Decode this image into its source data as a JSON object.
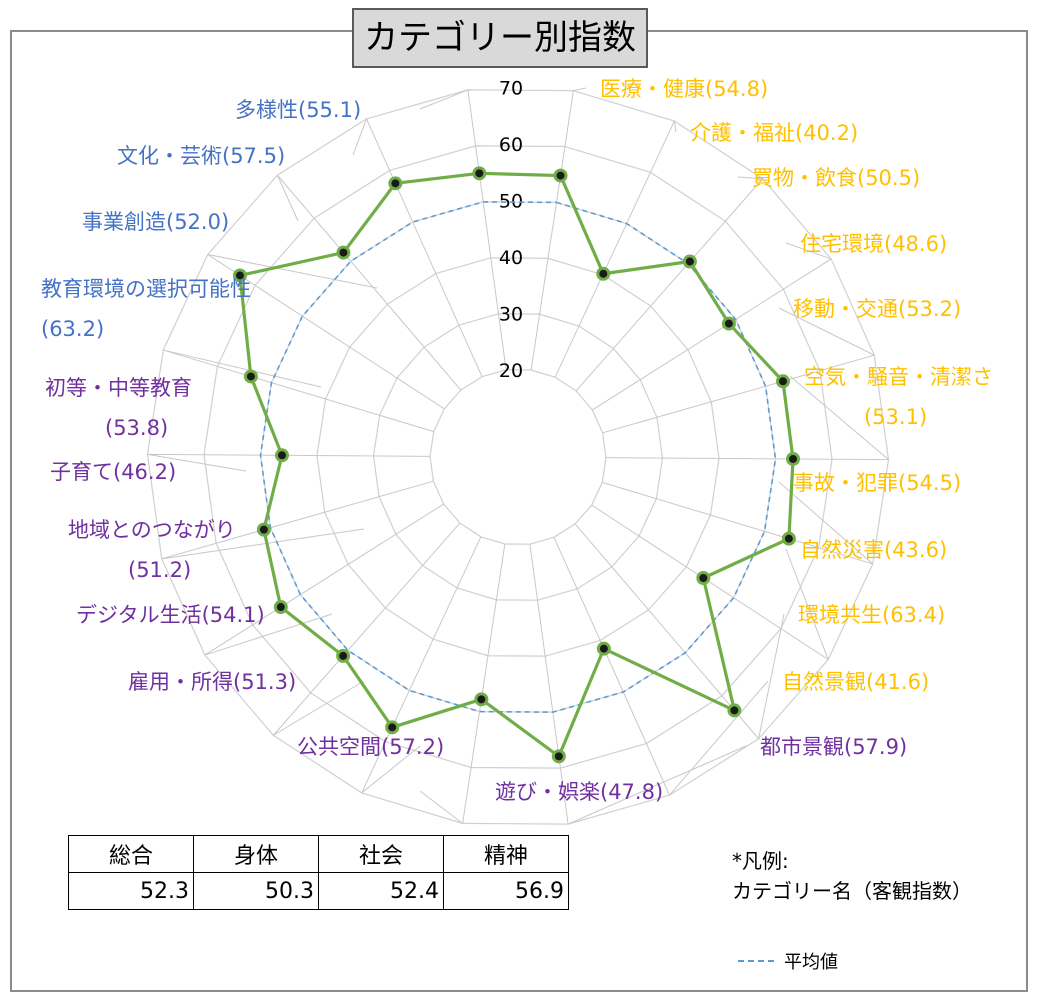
{
  "title": "カテゴリー別指数",
  "chart_data": {
    "type": "radar",
    "title": "カテゴリー別指数",
    "r_range": [
      20,
      70
    ],
    "r_ticks": [
      20,
      30,
      40,
      50,
      60,
      70
    ],
    "series": [
      {
        "name": "客観指数",
        "color": "#70ad47"
      },
      {
        "name": "平均値",
        "value": 50,
        "color": "#5b9bd5",
        "style": "dashed"
      }
    ],
    "categories": [
      {
        "label": "医療・健康",
        "value_text": "(54.8)",
        "value": 54.8,
        "color": "#ffc000"
      },
      {
        "label": "介護・福祉",
        "value_text": "(40.2)",
        "value": 40.2,
        "color": "#ffc000"
      },
      {
        "label": "買物・飲食",
        "value_text": "(50.5)",
        "value": 50.5,
        "color": "#ffc000"
      },
      {
        "label": "住宅環境",
        "value_text": "(48.6)",
        "value": 48.6,
        "color": "#ffc000"
      },
      {
        "label": "移動・交通",
        "value_text": "(53.2)",
        "value": 53.2,
        "color": "#ffc000"
      },
      {
        "label": "空気・騒音・清潔さ",
        "value_text": "(53.1)",
        "value": 53.1,
        "color": "#ffc000"
      },
      {
        "label": "事故・犯罪",
        "value_text": "(54.5)",
        "value": 54.5,
        "color": "#ffc000"
      },
      {
        "label": "自然災害",
        "value_text": "(43.6)",
        "value": 43.6,
        "color": "#ffc000"
      },
      {
        "label": "環境共生",
        "value_text": "(63.4)",
        "value": 63.4,
        "color": "#ffc000"
      },
      {
        "label": "自然景観",
        "value_text": "(41.6)",
        "value": 41.6,
        "color": "#ffc000"
      },
      {
        "label": "都市景観",
        "value_text": "(57.9)",
        "value": 57.9,
        "color": "#7030a0"
      },
      {
        "label": "遊び・娯楽",
        "value_text": "(47.8)",
        "value": 47.8,
        "color": "#7030a0"
      },
      {
        "label": "公共空間",
        "value_text": "(57.2)",
        "value": 57.2,
        "color": "#7030a0"
      },
      {
        "label": "雇用・所得",
        "value_text": "(51.3)",
        "value": 51.3,
        "color": "#7030a0"
      },
      {
        "label": "デジタル生活",
        "value_text": "(54.1)",
        "value": 54.1,
        "color": "#7030a0"
      },
      {
        "label": "地域とのつながり",
        "value_text": "(51.2)",
        "value": 51.2,
        "color": "#7030a0"
      },
      {
        "label": "子育て",
        "value_text": "(46.2)",
        "value": 46.2,
        "color": "#7030a0"
      },
      {
        "label": "初等・中等教育",
        "value_text": "(53.8)",
        "value": 53.8,
        "color": "#7030a0"
      },
      {
        "label": "教育環境の選択可能性",
        "value_text": "(63.2)",
        "value": 63.2,
        "color": "#4472c4"
      },
      {
        "label": "事業創造",
        "value_text": "(52.0)",
        "value": 52.0,
        "color": "#4472c4"
      },
      {
        "label": "文化・芸術",
        "value_text": "(57.5)",
        "value": 57.5,
        "color": "#4472c4"
      },
      {
        "label": "多様性",
        "value_text": "(55.1)",
        "value": 55.1,
        "color": "#4472c4"
      }
    ]
  },
  "summary_table": {
    "headers": [
      "総合",
      "身体",
      "社会",
      "精神"
    ],
    "values": [
      "52.3",
      "50.3",
      "52.4",
      "56.9"
    ]
  },
  "legend": {
    "line1": "*凡例:",
    "line2": "カテゴリー名（客観指数）",
    "avg_label": "平均値"
  }
}
